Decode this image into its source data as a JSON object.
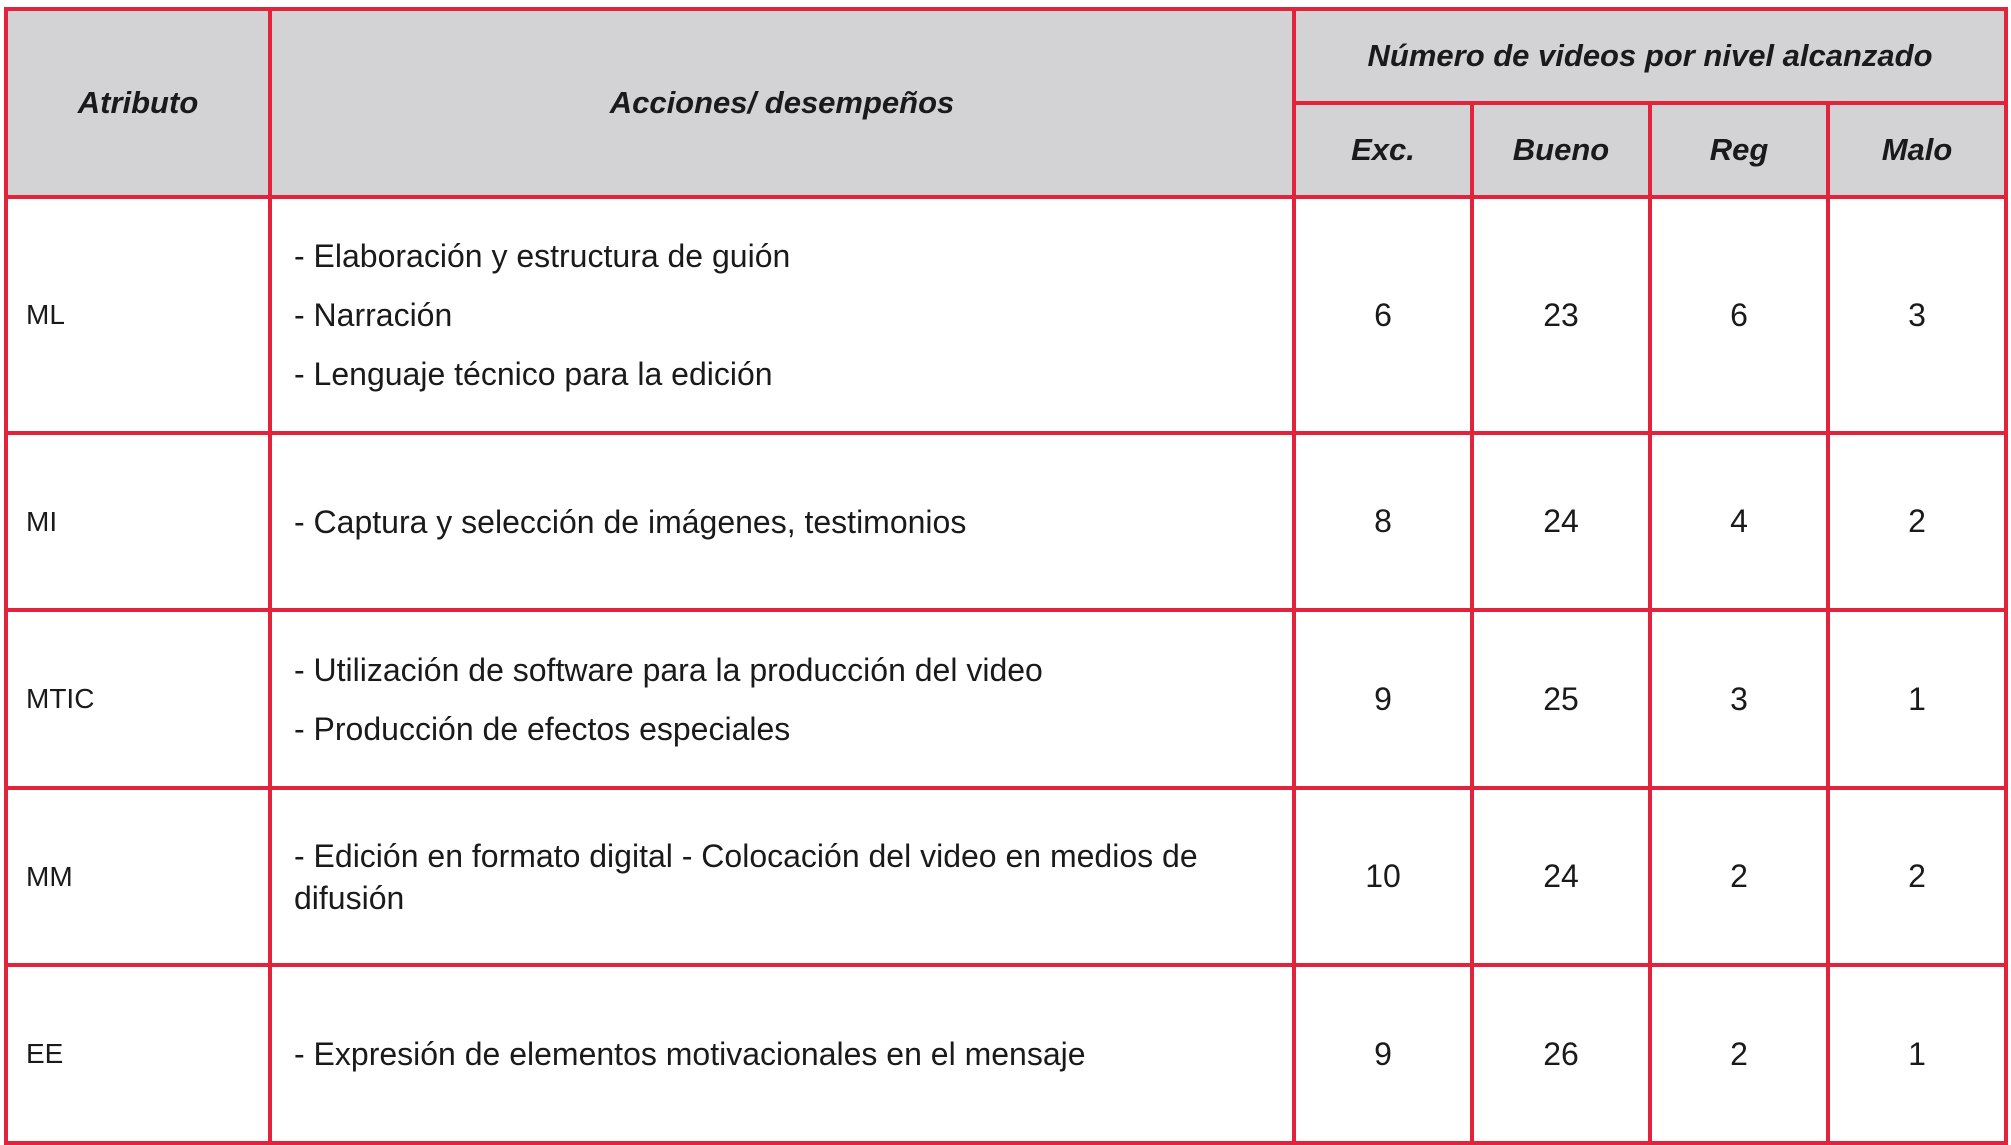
{
  "table": {
    "headers": {
      "attribute": "Atributo",
      "actions": "Acciones/ desempeños",
      "group": "Número de videos por nivel alcanzado",
      "levels": [
        "Exc.",
        "Bueno",
        "Reg",
        "Malo"
      ]
    },
    "rows": [
      {
        "attribute": "ML",
        "actions": [
          "- Elaboración y estructura de guión",
          "- Narración",
          "- Lenguaje técnico para la edición"
        ],
        "values": [
          "6",
          "23",
          "6",
          "3"
        ]
      },
      {
        "attribute": "MI",
        "actions": [
          "- Captura y selección de imágenes, testimonios"
        ],
        "values": [
          "8",
          "24",
          "4",
          "2"
        ]
      },
      {
        "attribute": "MTIC",
        "actions": [
          "- Utilización de software para la producción del video",
          "- Producción de efectos especiales"
        ],
        "values": [
          "9",
          "25",
          "3",
          "1"
        ]
      },
      {
        "attribute": "MM",
        "actions": [
          "- Edición en formato digital - Colocación del video en medios de difusión"
        ],
        "values": [
          "10",
          "24",
          "2",
          "2"
        ]
      },
      {
        "attribute": "EE",
        "actions": [
          "- Expresión de elementos motivacionales en el mensaje"
        ],
        "values": [
          "9",
          "26",
          "2",
          "1"
        ]
      }
    ]
  },
  "colors": {
    "border": "#e2233c",
    "header_background": "#d3d3d5"
  }
}
